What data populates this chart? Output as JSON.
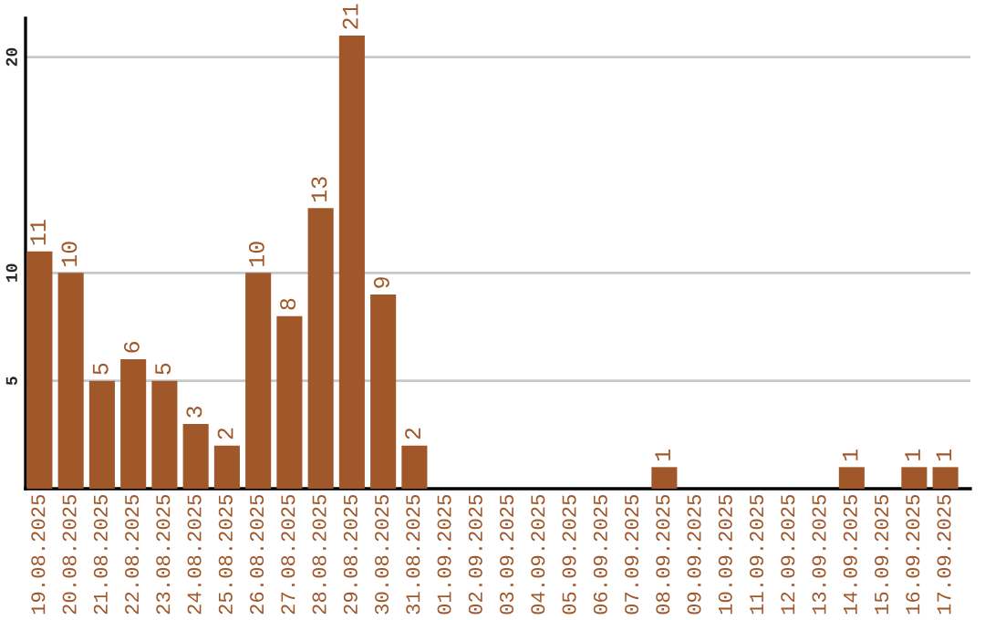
{
  "chart_data": {
    "type": "bar",
    "categories": [
      "19.08.2025",
      "20.08.2025",
      "21.08.2025",
      "22.08.2025",
      "23.08.2025",
      "24.08.2025",
      "25.08.2025",
      "26.08.2025",
      "27.08.2025",
      "28.08.2025",
      "29.08.2025",
      "30.08.2025",
      "31.08.2025",
      "01.09.2025",
      "02.09.2025",
      "03.09.2025",
      "04.09.2025",
      "05.09.2025",
      "06.09.2025",
      "07.09.2025",
      "08.09.2025",
      "09.09.2025",
      "10.09.2025",
      "11.09.2025",
      "12.09.2025",
      "13.09.2025",
      "14.09.2025",
      "15.09.2025",
      "16.09.2025",
      "17.09.2025"
    ],
    "values": [
      11,
      10,
      5,
      6,
      5,
      3,
      2,
      10,
      8,
      13,
      21,
      9,
      2,
      0,
      0,
      0,
      0,
      0,
      0,
      0,
      1,
      0,
      0,
      0,
      0,
      0,
      1,
      0,
      1,
      1
    ],
    "value_labels": [
      "11",
      "10",
      "5",
      "6",
      "5",
      "3",
      "2",
      "10",
      "8",
      "13",
      "21",
      "9",
      "2",
      null,
      null,
      null,
      null,
      null,
      null,
      null,
      "1",
      null,
      null,
      null,
      null,
      null,
      "1",
      null,
      "1",
      "1"
    ],
    "color": "#a0572a",
    "ylim": [
      0,
      21.8
    ],
    "yticks": [
      5,
      10,
      20
    ],
    "grid": "y"
  }
}
